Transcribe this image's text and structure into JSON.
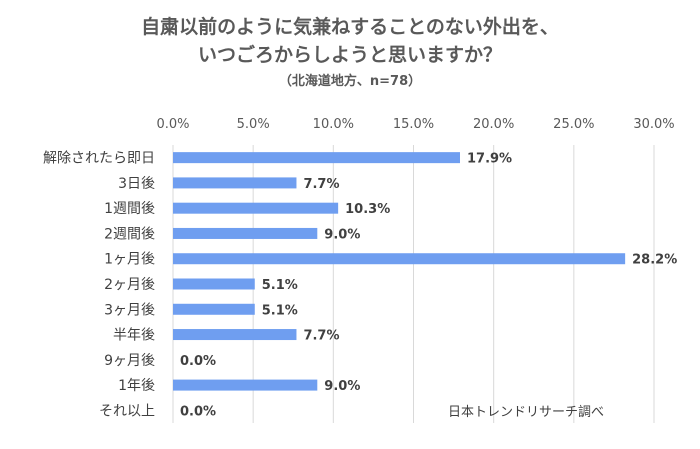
{
  "chart_data": {
    "type": "bar",
    "orientation": "horizontal",
    "title_line1": "自粛以前のように気兼ねすることのない外出を、",
    "title_line2": "いつごろからしようと思いますか？",
    "subtitle": "（北海道地方、n=78）",
    "categories": [
      "解除されたら即日",
      "3日後",
      "1週間後",
      "2週間後",
      "1ヶ月後",
      "2ヶ月後",
      "3ヶ月後",
      "半年後",
      "9ヶ月後",
      "1年後",
      "それ以上"
    ],
    "values": [
      17.9,
      7.7,
      10.3,
      9.0,
      28.2,
      5.1,
      5.1,
      7.7,
      0.0,
      9.0,
      0.0
    ],
    "value_labels": [
      "17.9%",
      "7.7%",
      "10.3%",
      "9.0%",
      "28.2%",
      "5.1%",
      "5.1%",
      "7.7%",
      "0.0%",
      "9.0%",
      "0.0%"
    ],
    "xticks": [
      "0.0%",
      "5.0%",
      "10.0%",
      "15.0%",
      "20.0%",
      "25.0%",
      "30.0%"
    ],
    "xlim": [
      0,
      30
    ],
    "grid": true,
    "bar_color": "#6f9ef0",
    "source": "日本トレンドリサーチ調べ"
  }
}
